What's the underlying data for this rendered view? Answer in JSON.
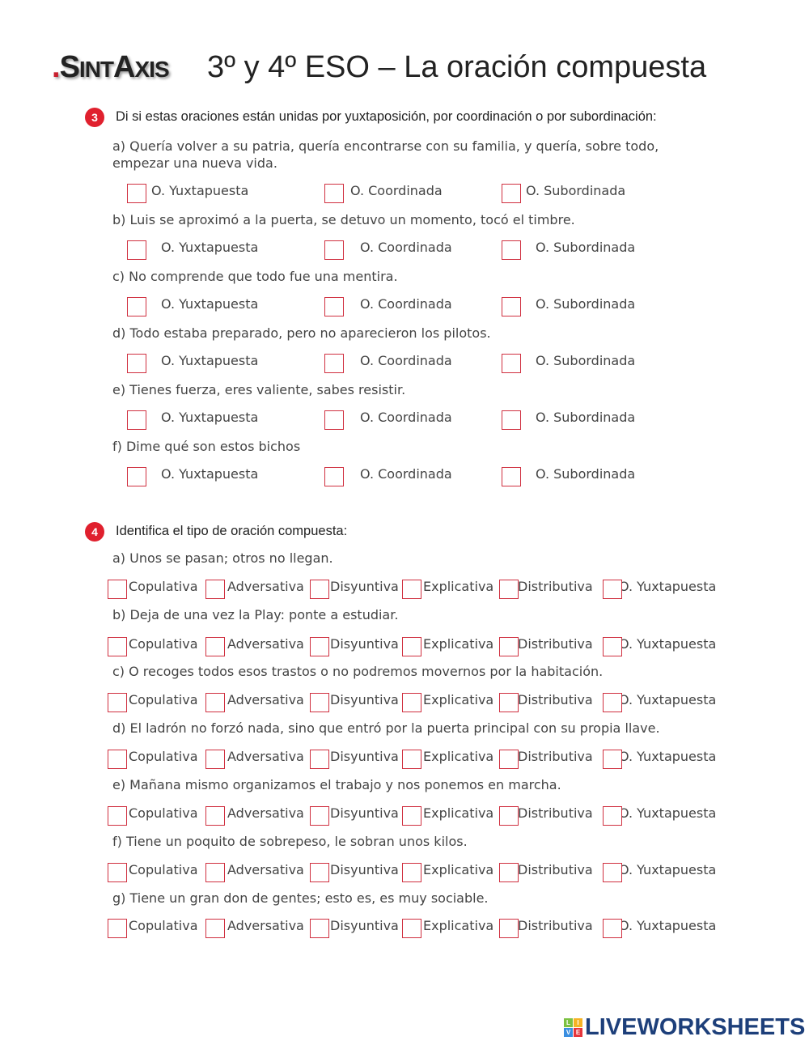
{
  "header": {
    "logo_text": "SintAxis",
    "title": "3º y 4º ESO – La oración compuesta"
  },
  "section3": {
    "number": "3",
    "instruction": "Di si estas oraciones están unidas por yuxtaposición, por coordinación o por subordinación:",
    "options": [
      "O. Yuxtapuesta",
      "O. Coordinada",
      "O. Subordinada"
    ],
    "questions": [
      "a) Quería volver a su patria, quería encontrarse con su familia, y quería, sobre todo, empezar una nueva vida.",
      "b) Luis se aproximó a la puerta, se detuvo un momento, tocó el timbre.",
      "c) No comprende que todo fue una mentira.",
      "d) Todo estaba preparado, pero no aparecieron los pilotos.",
      "e) Tienes fuerza, eres valiente, sabes resistir.",
      "f) Dime qué son estos bichos"
    ]
  },
  "section4": {
    "number": "4",
    "instruction": "Identifica el tipo de oración compuesta:",
    "options": [
      "Copulativa",
      "Adversativa",
      "Disyuntiva",
      "Explicativa",
      "Distributiva",
      "O. Yuxtapuesta"
    ],
    "questions": [
      "a) Unos se pasan; otros no llegan.",
      "b) Deja de una vez la Play: ponte a estudiar.",
      "c) O recoges todos esos trastos o no podremos movernos por la habitación.",
      "d) El ladrón no forzó nada, sino que entró por la puerta principal con su propia llave.",
      "e) Mañana mismo organizamos el trabajo y nos ponemos en marcha.",
      "f) Tiene un poquito de sobrepeso, le sobran unos kilos.",
      "g) Tiene un gran don de gentes; esto es, es muy sociable."
    ]
  },
  "footer": {
    "brand": "LIVEWORKSHEETS",
    "badge_letters": [
      "L",
      "I",
      "V",
      "E"
    ]
  },
  "colors": {
    "accent": "#d03040",
    "brand": "#1d3f7a"
  }
}
